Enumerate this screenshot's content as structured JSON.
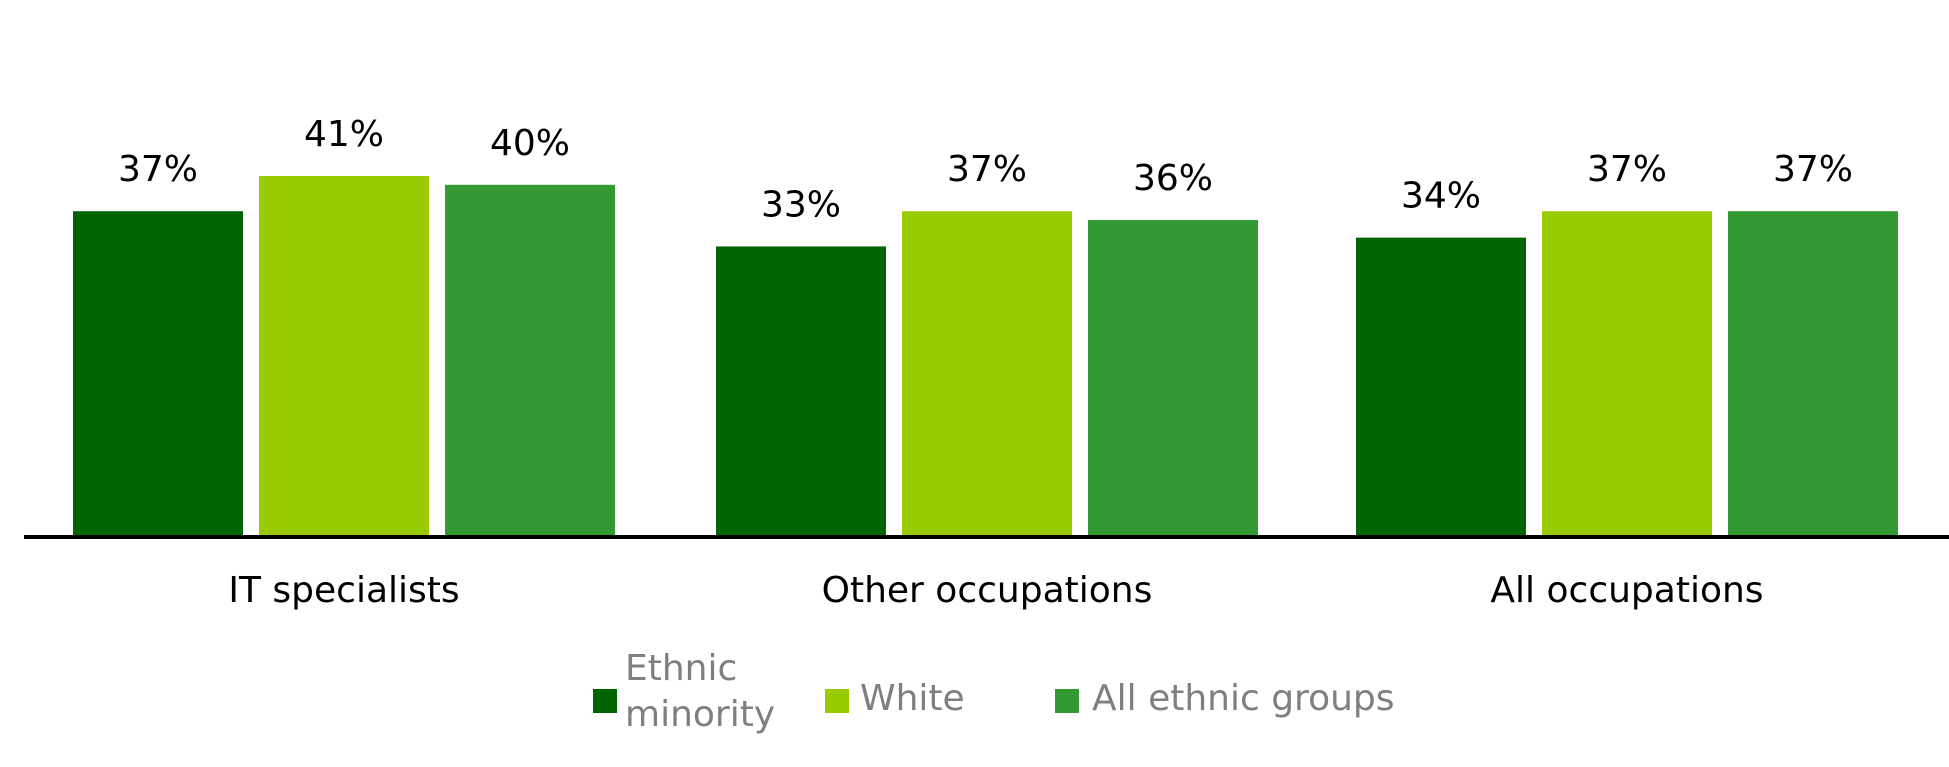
{
  "chart_data": {
    "type": "bar",
    "categories": [
      "IT specialists",
      "Other occupations",
      "All occupations"
    ],
    "series": [
      {
        "name": "Ethnic minority",
        "values": [
          37,
          33,
          34
        ],
        "labels": [
          "37%",
          "33%",
          "34%"
        ],
        "color": "#006400"
      },
      {
        "name": "White",
        "values": [
          41,
          37,
          37
        ],
        "labels": [
          "41%",
          "37%",
          "37%"
        ],
        "color": "#99cc00"
      },
      {
        "name": "All ethnic groups",
        "values": [
          40,
          36,
          37
        ],
        "labels": [
          "40%",
          "36%",
          "37%"
        ],
        "color": "#339933"
      }
    ],
    "legend": {
      "placement": "bottom",
      "items": [
        {
          "lines": [
            "Ethnic",
            "minority"
          ],
          "color": "#006400"
        },
        {
          "lines": [
            "White"
          ],
          "color": "#99cc00"
        },
        {
          "lines": [
            "All ethnic groups"
          ],
          "color": "#339933"
        }
      ]
    },
    "title": "",
    "xlabel": "",
    "ylabel": "",
    "ylim": [
      0,
      41
    ],
    "grid": false
  }
}
